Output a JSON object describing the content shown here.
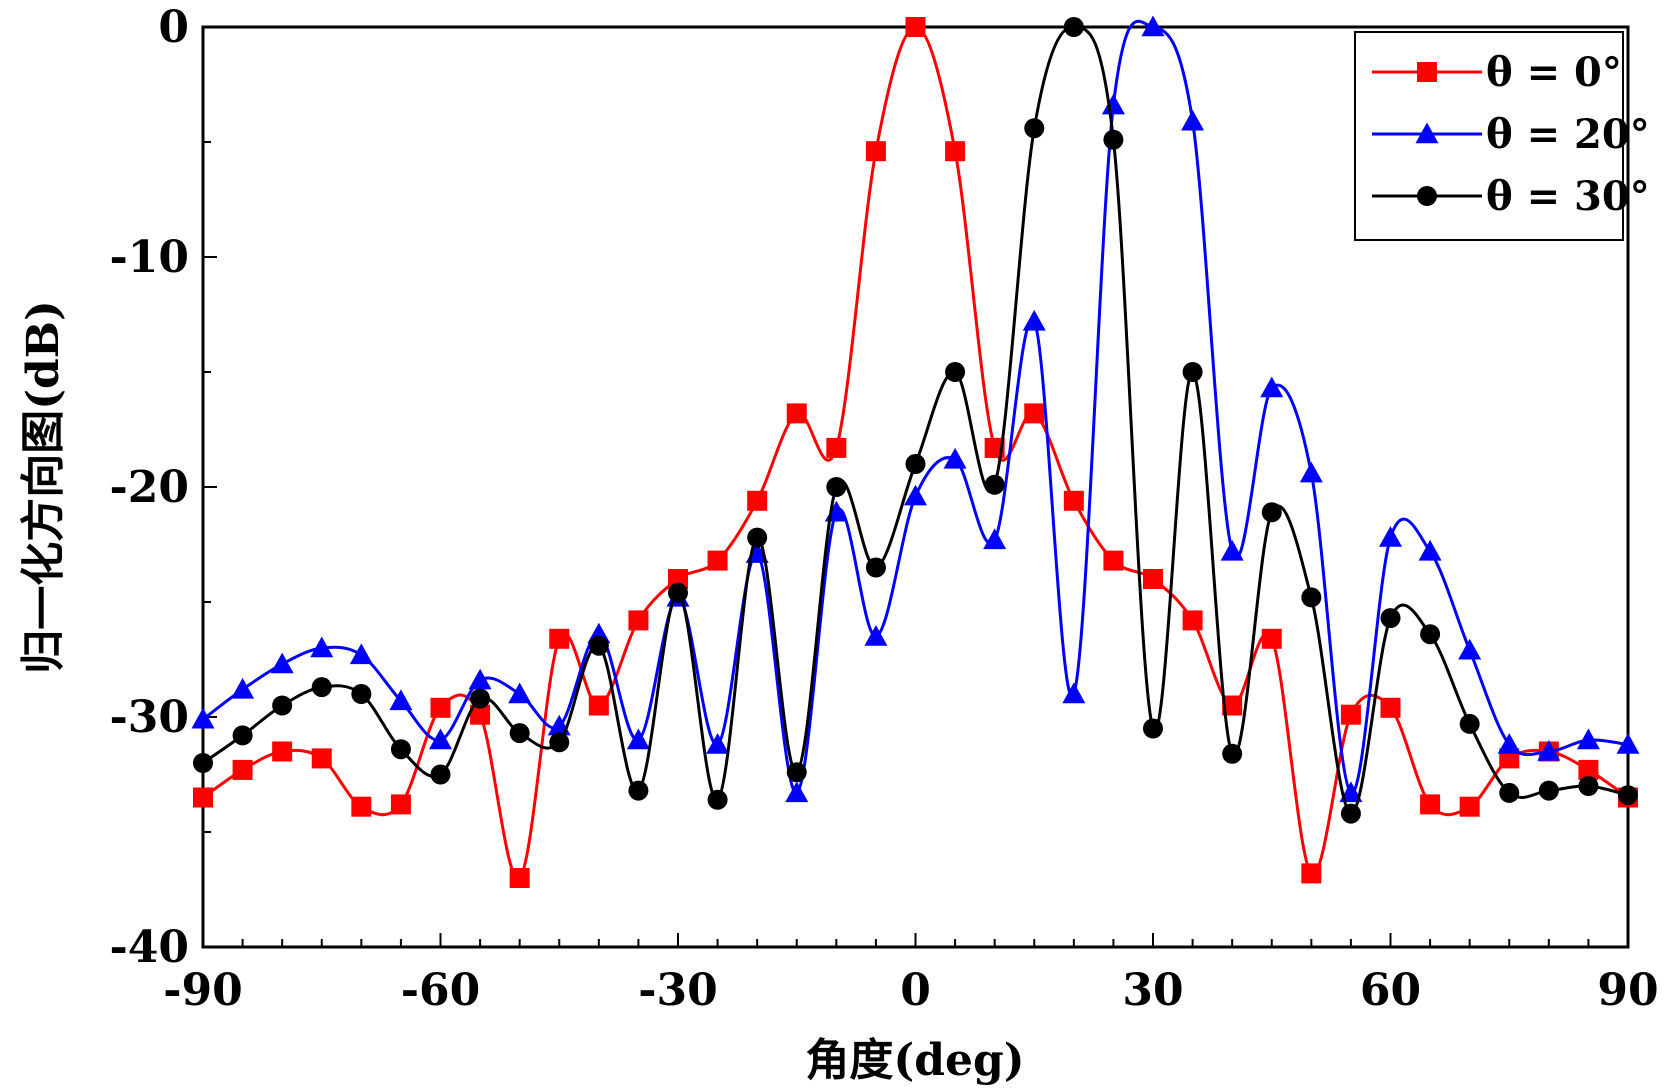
{
  "chart_data": {
    "type": "line",
    "title": "",
    "xlabel": "角度(deg)",
    "ylabel": "归一化方向图(dB)",
    "xlim": [
      -90,
      90
    ],
    "ylim": [
      -40,
      0
    ],
    "xticks": [
      -90,
      -60,
      -30,
      0,
      30,
      60,
      90
    ],
    "yticks": [
      0,
      -10,
      -20,
      -30,
      -40
    ],
    "grid": false,
    "legend_position": "top-right",
    "series": [
      {
        "name": "θ = 0°",
        "color": "#ff0000",
        "marker": "square",
        "x": [
          -90,
          -85,
          -80,
          -75,
          -70,
          -65,
          -60,
          -55,
          -50,
          -45,
          -40,
          -35,
          -30,
          -25,
          -20,
          -15,
          -10,
          -5,
          0,
          5,
          10,
          15,
          20,
          25,
          30,
          35,
          40,
          45,
          50,
          55,
          60,
          65,
          70,
          75,
          80,
          85,
          90
        ],
        "y": [
          -33.5,
          -32.3,
          -31.5,
          -31.8,
          -33.9,
          -33.8,
          -29.6,
          -29.9,
          -37,
          -26.6,
          -29.5,
          -25.8,
          -24,
          -23.2,
          -20.6,
          -16.8,
          -18.3,
          -5.4,
          0,
          -5.4,
          -18.3,
          -16.8,
          -20.6,
          -23.2,
          -24,
          -25.8,
          -29.5,
          -26.6,
          -36.8,
          -29.9,
          -29.6,
          -33.8,
          -33.9,
          -31.8,
          -31.5,
          -32.3,
          -33.5
        ]
      },
      {
        "name": "θ = 20°",
        "color": "#0000ff",
        "marker": "triangle",
        "x": [
          -90,
          -85,
          -80,
          -75,
          -70,
          -65,
          -60,
          -55,
          -50,
          -45,
          -40,
          -35,
          -30,
          -25,
          -20,
          -15,
          -10,
          -5,
          0,
          5,
          10,
          15,
          20,
          25,
          30,
          35,
          40,
          45,
          50,
          55,
          60,
          65,
          70,
          75,
          80,
          85,
          90
        ],
        "y": [
          -30.1,
          -28.8,
          -27.7,
          -27,
          -27.3,
          -29.3,
          -31,
          -28.4,
          -29,
          -30.4,
          -26.4,
          -31,
          -24.8,
          -31.2,
          -22.9,
          -33.3,
          -21.1,
          -26.5,
          -20.4,
          -18.8,
          -22.3,
          -12.8,
          -29,
          -3.4,
          0,
          -4.1,
          -22.8,
          -15.7,
          -19.4,
          -33.3,
          -22.2,
          -22.8,
          -27.1,
          -31.2,
          -31.5,
          -31,
          -31.2
        ]
      },
      {
        "name": "θ = 30°",
        "color": "#000000",
        "marker": "circle",
        "x": [
          -90,
          -85,
          -80,
          -75,
          -70,
          -65,
          -60,
          -55,
          -50,
          -45,
          -40,
          -35,
          -30,
          -25,
          -20,
          -15,
          -10,
          -5,
          0,
          5,
          10,
          15,
          20,
          25,
          30,
          35,
          40,
          45,
          50,
          55,
          60,
          65,
          70,
          75,
          80,
          85,
          90
        ],
        "y": [
          -32,
          -30.8,
          -29.5,
          -28.7,
          -29,
          -31.4,
          -32.5,
          -29.2,
          -30.7,
          -31.1,
          -26.9,
          -33.2,
          -24.6,
          -33.6,
          -22.2,
          -32.4,
          -20,
          -23.5,
          -19,
          -15,
          -19.9,
          -4.4,
          0,
          -4.9,
          -30.5,
          -15,
          -31.6,
          -21.1,
          -24.8,
          -34.2,
          -25.7,
          -26.4,
          -30.3,
          -33.3,
          -33.2,
          -33,
          -33.4
        ]
      }
    ]
  }
}
